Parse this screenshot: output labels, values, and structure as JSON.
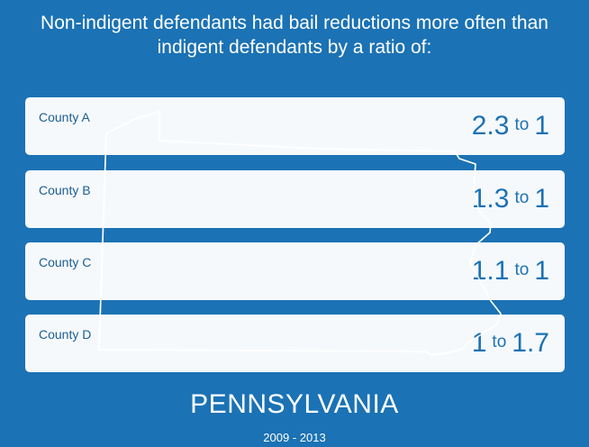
{
  "headline": {
    "line1": "Non-indigent defendants had bail reductions more often than",
    "line2": "indigent defendants by a ratio of:"
  },
  "counties": [
    {
      "name": "County A",
      "left": "2.3",
      "connector": "to",
      "right": "1"
    },
    {
      "name": "County B",
      "left": "1.3",
      "connector": "to",
      "right": "1"
    },
    {
      "name": "County C",
      "left": "1.1",
      "connector": "to",
      "right": "1"
    },
    {
      "name": "County D",
      "left": "1",
      "connector": "to",
      "right": "1.7"
    }
  ],
  "footer": {
    "state": "PENNSYLVANIA",
    "years": "2009 - 2013"
  },
  "colors": {
    "background": "#1b72b4",
    "card": "#f4f8fc",
    "accent_text": "#1b72b4"
  }
}
